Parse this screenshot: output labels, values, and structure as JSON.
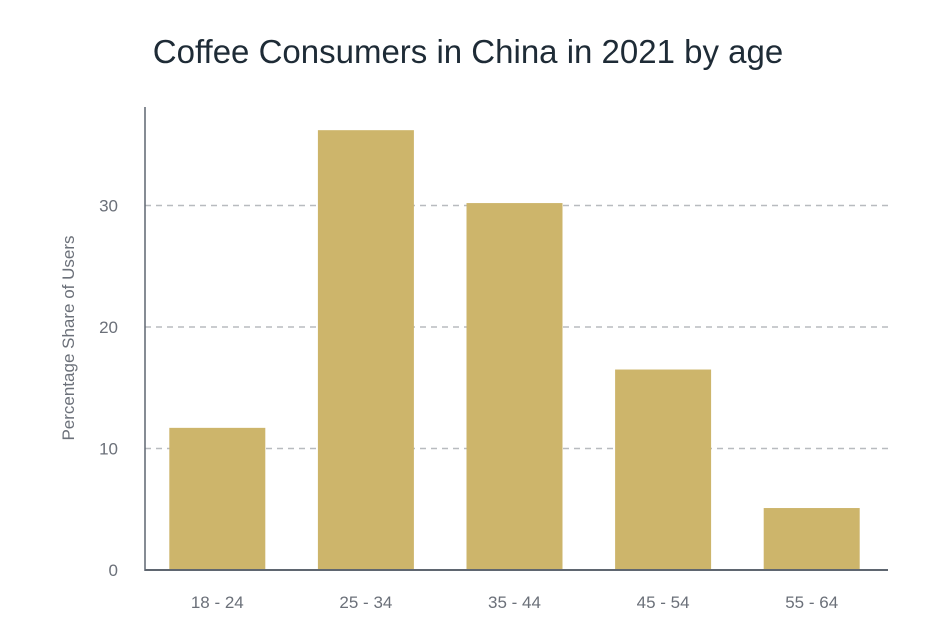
{
  "chart_data": {
    "type": "bar",
    "title": "Coffee Consumers in China in 2021 by age",
    "xlabel": "",
    "ylabel": "Percentage Share of Users",
    "categories": [
      "18 - 24",
      "25 - 34",
      "35 - 44",
      "45 - 54",
      "55 - 64"
    ],
    "values": [
      11.7,
      36.2,
      30.2,
      16.5,
      5.1
    ],
    "yticks": [
      0,
      10,
      20,
      30
    ],
    "ylim": [
      0,
      38
    ],
    "grid": "horizontal dashed",
    "colors": {
      "bar": "#cdb56b",
      "axis": "#5f6670",
      "grid": "#b8bbbf"
    }
  }
}
